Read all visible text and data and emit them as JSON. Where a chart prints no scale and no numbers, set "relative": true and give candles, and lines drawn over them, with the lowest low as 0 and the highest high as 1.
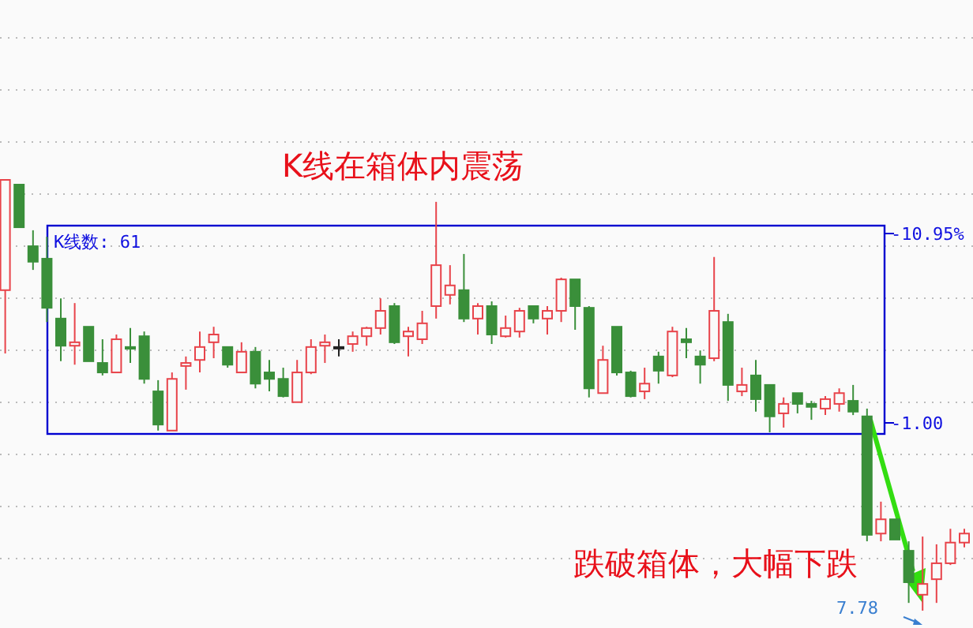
{
  "chart_data": {
    "type": "candlestick",
    "relative": true,
    "grid": true,
    "categories": [
      null,
      null,
      null,
      null,
      null,
      null,
      null,
      null,
      null,
      null,
      null,
      null,
      null,
      null,
      null,
      null,
      null,
      null,
      null,
      null,
      null,
      null,
      null,
      null,
      null,
      null,
      null,
      null,
      null,
      null,
      null,
      null,
      null,
      null,
      null,
      null,
      null,
      null,
      null,
      null,
      null,
      null,
      null,
      null,
      null,
      null,
      null,
      null,
      null,
      null,
      null,
      null,
      null,
      null,
      null,
      null,
      null,
      null,
      null,
      null,
      null,
      null,
      null,
      null,
      null,
      null,
      null,
      null,
      null,
      null
    ],
    "ohlc": [
      [
        0.744,
        1.0,
        0.597,
        1.0
      ],
      [
        0.989,
        0.989,
        0.89,
        0.89
      ],
      [
        0.846,
        0.883,
        0.791,
        0.81
      ],
      [
        0.817,
        0.868,
        0.67,
        0.703
      ],
      [
        0.678,
        0.725,
        0.579,
        0.615
      ],
      [
        0.615,
        0.714,
        0.571,
        0.623
      ],
      [
        0.659,
        0.659,
        0.579,
        0.579
      ],
      [
        0.575,
        0.63,
        0.546,
        0.553
      ],
      [
        0.553,
        0.641,
        0.553,
        0.63
      ],
      [
        0.612,
        0.656,
        0.575,
        0.608
      ],
      [
        0.637,
        0.648,
        0.527,
        0.538
      ],
      [
        0.509,
        0.535,
        0.418,
        0.432
      ],
      [
        0.418,
        0.553,
        0.418,
        0.538
      ],
      [
        0.568,
        0.59,
        0.513,
        0.575
      ],
      [
        0.582,
        0.648,
        0.553,
        0.612
      ],
      [
        0.623,
        0.659,
        0.586,
        0.641
      ],
      [
        0.612,
        0.612,
        0.564,
        0.571
      ],
      [
        0.553,
        0.623,
        0.553,
        0.601
      ],
      [
        0.601,
        0.612,
        0.516,
        0.527
      ],
      [
        0.553,
        0.582,
        0.509,
        0.538
      ],
      [
        0.538,
        0.564,
        0.495,
        0.498
      ],
      [
        0.484,
        0.582,
        0.484,
        0.553
      ],
      [
        0.553,
        0.63,
        0.549,
        0.612
      ],
      [
        0.615,
        0.641,
        0.575,
        0.623
      ],
      [
        0.612,
        0.63,
        0.59,
        0.612
      ],
      [
        0.619,
        0.648,
        0.601,
        0.637
      ],
      [
        0.637,
        0.659,
        0.615,
        0.656
      ],
      [
        0.656,
        0.725,
        0.641,
        0.696
      ],
      [
        0.707,
        0.714,
        0.619,
        0.623
      ],
      [
        0.637,
        0.659,
        0.59,
        0.648
      ],
      [
        0.63,
        0.696,
        0.619,
        0.667
      ],
      [
        0.707,
        0.949,
        0.678,
        0.802
      ],
      [
        0.733,
        0.802,
        0.711,
        0.755
      ],
      [
        0.744,
        0.828,
        0.67,
        0.678
      ],
      [
        0.678,
        0.714,
        0.641,
        0.707
      ],
      [
        0.707,
        0.718,
        0.619,
        0.641
      ],
      [
        0.637,
        0.685,
        0.634,
        0.656
      ],
      [
        0.648,
        0.703,
        0.634,
        0.696
      ],
      [
        0.707,
        0.707,
        0.667,
        0.678
      ],
      [
        0.678,
        0.707,
        0.641,
        0.696
      ],
      [
        0.696,
        0.773,
        0.67,
        0.769
      ],
      [
        0.769,
        0.769,
        0.652,
        0.707
      ],
      [
        0.703,
        0.707,
        0.495,
        0.516
      ],
      [
        0.505,
        0.615,
        0.505,
        0.582
      ],
      [
        0.659,
        0.659,
        0.546,
        0.553
      ],
      [
        0.553,
        0.557,
        0.495,
        0.498
      ],
      [
        0.509,
        0.564,
        0.491,
        0.527
      ],
      [
        0.59,
        0.601,
        0.527,
        0.557
      ],
      [
        0.546,
        0.659,
        0.542,
        0.648
      ],
      [
        0.63,
        0.656,
        0.586,
        0.623
      ],
      [
        0.59,
        0.604,
        0.527,
        0.571
      ],
      [
        0.586,
        0.821,
        0.579,
        0.696
      ],
      [
        0.67,
        0.689,
        0.487,
        0.524
      ],
      [
        0.509,
        0.564,
        0.498,
        0.524
      ],
      [
        0.546,
        0.582,
        0.462,
        0.491
      ],
      [
        0.524,
        0.524,
        0.414,
        0.451
      ],
      [
        0.458,
        0.495,
        0.425,
        0.48
      ],
      [
        0.505,
        0.505,
        0.458,
        0.48
      ],
      [
        0.48,
        0.487,
        0.443,
        0.473
      ],
      [
        0.469,
        0.498,
        0.454,
        0.491
      ],
      [
        0.48,
        0.516,
        0.462,
        0.505
      ],
      [
        0.487,
        0.524,
        0.454,
        0.462
      ],
      [
        0.451,
        0.469,
        0.161,
        0.176
      ],
      [
        0.179,
        0.253,
        0.161,
        0.212
      ],
      [
        0.212,
        0.212,
        0.165,
        0.165
      ],
      [
        0.139,
        0.161,
        0.018,
        0.066
      ],
      [
        0.037,
        0.172,
        0.0,
        0.062
      ],
      [
        0.073,
        0.154,
        0.018,
        0.11
      ],
      [
        0.11,
        0.19,
        0.106,
        0.158
      ],
      [
        0.158,
        0.19,
        0.147,
        0.179
      ]
    ],
    "colors": [
      "#e8434a",
      "#3a8f3a",
      "#3a8f3a",
      "#3a8f3a",
      "#3a8f3a",
      "#e8434a",
      "#3a8f3a",
      "#3a8f3a",
      "#e8434a",
      "#3a8f3a",
      "#3a8f3a",
      "#3a8f3a",
      "#e8434a",
      "#e8434a",
      "#e8434a",
      "#e8434a",
      "#3a8f3a",
      "#e8434a",
      "#3a8f3a",
      "#3a8f3a",
      "#3a8f3a",
      "#e8434a",
      "#e8434a",
      "#e8434a",
      "#222222",
      "#e8434a",
      "#e8434a",
      "#e8434a",
      "#3a8f3a",
      "#e8434a",
      "#e8434a",
      "#e8434a",
      "#e8434a",
      "#3a8f3a",
      "#e8434a",
      "#3a8f3a",
      "#e8434a",
      "#e8434a",
      "#3a8f3a",
      "#e8434a",
      "#e8434a",
      "#3a8f3a",
      "#3a8f3a",
      "#e8434a",
      "#3a8f3a",
      "#3a8f3a",
      "#e8434a",
      "#3a8f3a",
      "#e8434a",
      "#3a8f3a",
      "#3a8f3a",
      "#e8434a",
      "#3a8f3a",
      "#e8434a",
      "#3a8f3a",
      "#3a8f3a",
      "#e8434a",
      "#3a8f3a",
      "#3a8f3a",
      "#e8434a",
      "#e8434a",
      "#3a8f3a",
      "#3a8f3a",
      "#e8434a",
      "#3a8f3a",
      "#3a8f3a",
      "#e8434a",
      "#e8434a",
      "#e8434a",
      "#e8434a"
    ],
    "annotations": [
      "K线在箱体内震荡",
      "K线数: 61",
      "-10.95%",
      "-1.00",
      "跌破箱体，大幅下跌",
      "7.78"
    ]
  }
}
